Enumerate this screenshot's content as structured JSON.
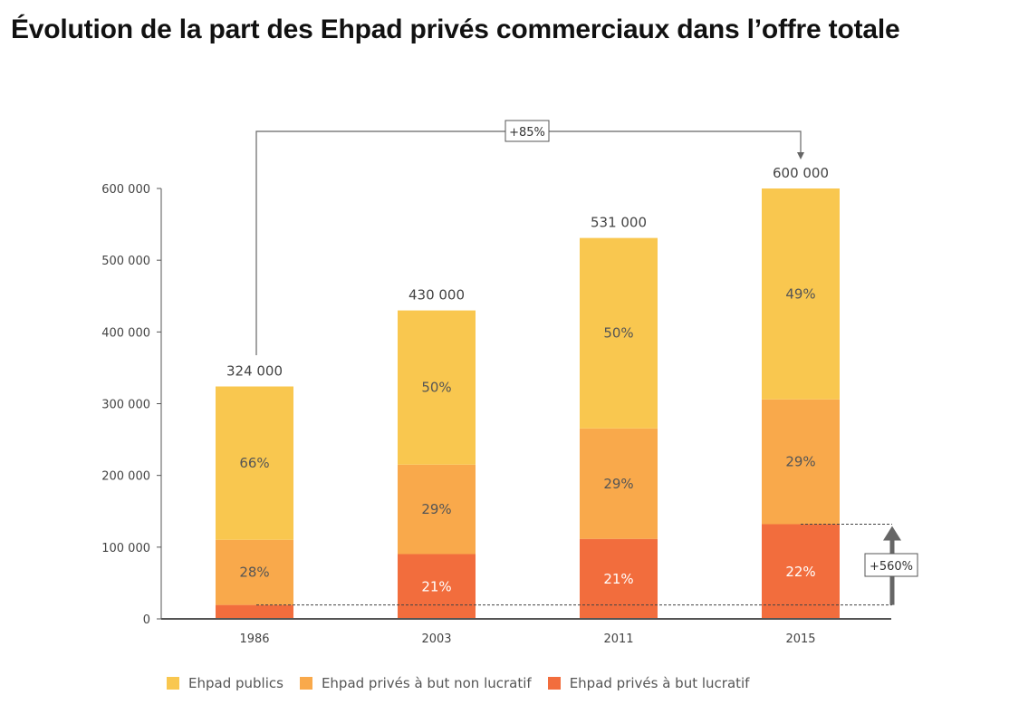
{
  "title": "Évolution de la part des Ehpad privés commerciaux dans l’offre totale",
  "colors": {
    "publics": "#F9C74F",
    "non_lucratif": "#F9A94B",
    "lucratif": "#F26D3D",
    "axis": "#555555"
  },
  "annotations": {
    "total_growth": "+85%",
    "lucratif_growth": "+560%"
  },
  "chart_data": {
    "type": "bar",
    "stacked": true,
    "categories": [
      "1986",
      "2003",
      "2011",
      "2015"
    ],
    "totals": [
      324000,
      430000,
      531000,
      600000
    ],
    "total_labels": [
      "324 000",
      "430 000",
      "531 000",
      "600 000"
    ],
    "series": [
      {
        "name": "Ehpad privés à but lucratif",
        "key": "lucratif",
        "percents": [
          6,
          21,
          21,
          22
        ],
        "labels": [
          "",
          "21%",
          "21%",
          "22%"
        ]
      },
      {
        "name": "Ehpad privés à but non lucratif",
        "key": "non_lucratif",
        "percents": [
          28,
          29,
          29,
          29
        ],
        "labels": [
          "28%",
          "29%",
          "29%",
          "29%"
        ]
      },
      {
        "name": "Ehpad publics",
        "key": "publics",
        "percents": [
          66,
          50,
          50,
          49
        ],
        "labels": [
          "66%",
          "50%",
          "50%",
          "49%"
        ]
      }
    ],
    "yticks": [
      0,
      100000,
      200000,
      300000,
      400000,
      500000,
      600000
    ],
    "ytick_labels": [
      "0",
      "100 000",
      "200 000",
      "300 000",
      "400 000",
      "500 000",
      "600 000"
    ],
    "ylim": [
      0,
      600000
    ],
    "legend_position": "bottom"
  },
  "legend": [
    {
      "label": "Ehpad publics",
      "color": "#F9C74F"
    },
    {
      "label": "Ehpad privés à but non lucratif",
      "color": "#F9A94B"
    },
    {
      "label": "Ehpad privés à but lucratif",
      "color": "#F26D3D"
    }
  ]
}
